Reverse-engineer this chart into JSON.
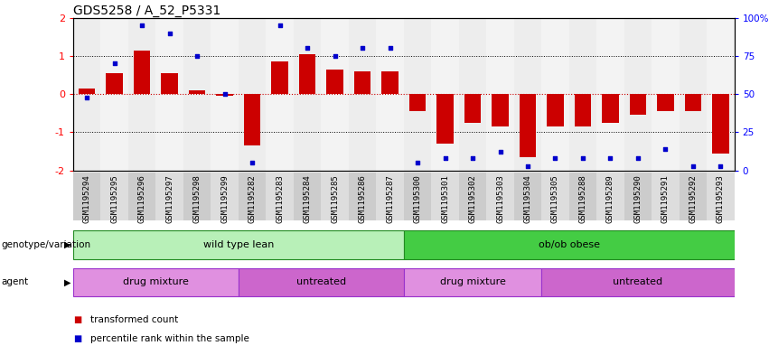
{
  "title": "GDS5258 / A_52_P5331",
  "samples": [
    "GSM1195294",
    "GSM1195295",
    "GSM1195296",
    "GSM1195297",
    "GSM1195298",
    "GSM1195299",
    "GSM1195282",
    "GSM1195283",
    "GSM1195284",
    "GSM1195285",
    "GSM1195286",
    "GSM1195287",
    "GSM1195300",
    "GSM1195301",
    "GSM1195302",
    "GSM1195303",
    "GSM1195304",
    "GSM1195305",
    "GSM1195288",
    "GSM1195289",
    "GSM1195290",
    "GSM1195291",
    "GSM1195292",
    "GSM1195293"
  ],
  "bar_values": [
    0.15,
    0.55,
    1.15,
    0.55,
    0.1,
    -0.05,
    -1.35,
    0.85,
    1.05,
    0.65,
    0.6,
    0.6,
    -0.45,
    -1.3,
    -0.75,
    -0.85,
    -1.65,
    -0.85,
    -0.85,
    -0.75,
    -0.55,
    -0.45,
    -0.45,
    -1.55
  ],
  "percentile_values": [
    48,
    70,
    95,
    90,
    75,
    50,
    5,
    95,
    80,
    75,
    80,
    80,
    5,
    8,
    8,
    12,
    3,
    8,
    8,
    8,
    8,
    14,
    3,
    3
  ],
  "ylim": [
    -2,
    2
  ],
  "bar_color": "#cc0000",
  "percentile_color": "#0000cc",
  "zero_line_color": "#cc0000",
  "genotype_groups": [
    {
      "label": "wild type lean",
      "start": 0,
      "end": 12,
      "color": "#b8f0b8",
      "edge_color": "#228B22"
    },
    {
      "label": "ob/ob obese",
      "start": 12,
      "end": 24,
      "color": "#44cc44",
      "edge_color": "#228B22"
    }
  ],
  "agent_groups": [
    {
      "label": "drug mixture",
      "start": 0,
      "end": 6,
      "color": "#e090e0",
      "edge_color": "#9932cc"
    },
    {
      "label": "untreated",
      "start": 6,
      "end": 12,
      "color": "#cc66cc",
      "edge_color": "#9932cc"
    },
    {
      "label": "drug mixture",
      "start": 12,
      "end": 17,
      "color": "#e090e0",
      "edge_color": "#9932cc"
    },
    {
      "label": "untreated",
      "start": 17,
      "end": 24,
      "color": "#cc66cc",
      "edge_color": "#9932cc"
    }
  ],
  "genotype_label": "genotype/variation",
  "agent_label": "agent",
  "legend_items": [
    {
      "color": "#cc0000",
      "label": "transformed count"
    },
    {
      "color": "#0000cc",
      "label": "percentile rank within the sample"
    }
  ],
  "tick_label_fontsize": 6.5,
  "title_fontsize": 10,
  "col_colors": [
    "#cccccc",
    "#dddddd"
  ]
}
